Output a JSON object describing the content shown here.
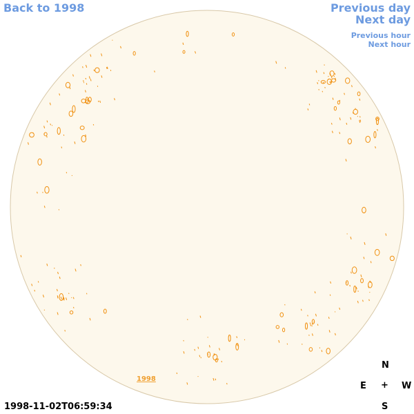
{
  "nav": {
    "back": "Back to 1998",
    "previous_day": "Previous day",
    "next_day": "Next day",
    "previous_hour": "Previous hour",
    "next_hour": "Next hour"
  },
  "disk_label": "1998",
  "timestamp": "1998-11-02T06:59:34",
  "compass": {
    "north": "N",
    "east": "E",
    "center": "+",
    "west": "W",
    "south": "S"
  }
}
